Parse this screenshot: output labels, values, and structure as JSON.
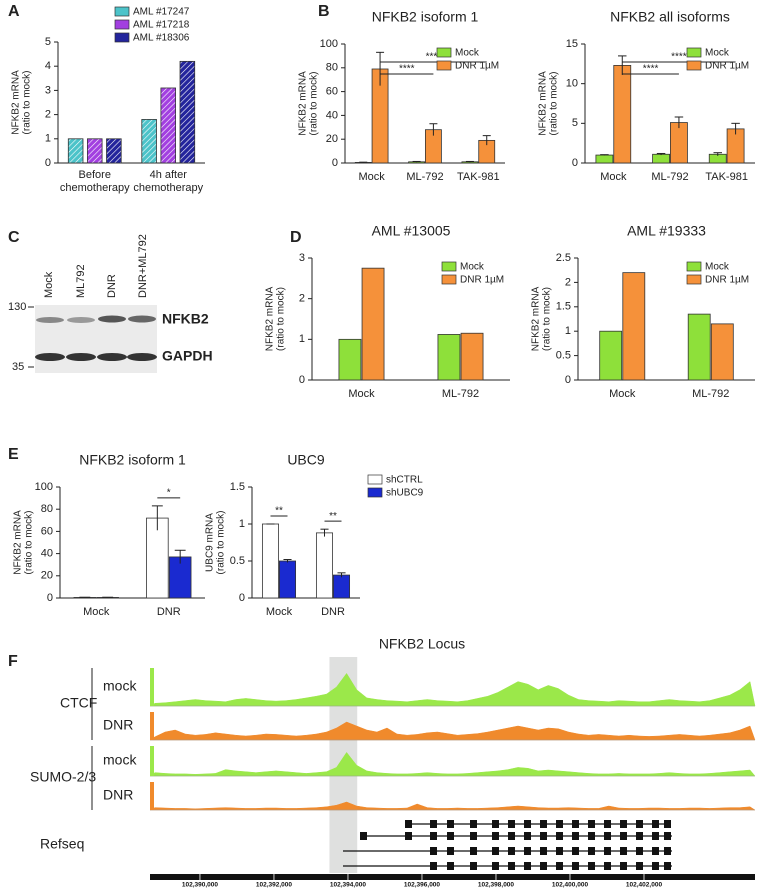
{
  "panel_labels": [
    "A",
    "B",
    "C",
    "D",
    "E",
    "F"
  ],
  "blot": {
    "lanes": [
      "Mock",
      "ML792",
      "DNR",
      "DNR+ML792"
    ],
    "markers": [
      "130",
      "35"
    ],
    "bands": [
      "NFKB2",
      "GAPDH"
    ]
  },
  "chart_data": [
    {
      "type": "bar",
      "ylabel": [
        "NFKB2 mRNA",
        "(ratio to mock)"
      ],
      "categories": [
        "Before chemotherapy",
        "4h after chemotherapy"
      ],
      "series": [
        {
          "name": "AML #17247",
          "color": "#4cc3c9",
          "values": [
            1,
            1.8
          ]
        },
        {
          "name": "AML #17218",
          "color": "#a23fe0",
          "values": [
            1,
            3.1
          ]
        },
        {
          "name": "AML #18306",
          "color": "#23249c",
          "values": [
            1,
            4.2
          ]
        }
      ],
      "ylim": [
        0,
        5
      ],
      "yticks": [
        0,
        1,
        2,
        3,
        4,
        5
      ],
      "hatch": true,
      "legend": "top"
    },
    {
      "type": "bar",
      "title": "NFKB2 isoform 1",
      "ylabel": [
        "NFKB2 mRNA",
        "(ratio to mock)"
      ],
      "categories": [
        "Mock",
        "ML-792",
        "TAK-981"
      ],
      "series": [
        {
          "name": "Mock",
          "color": "#8ee03a",
          "values": [
            0.5,
            1,
            1
          ],
          "errors": [
            0.2,
            0.3,
            0.3
          ]
        },
        {
          "name": "DNR 1µM",
          "color": "#f5913a",
          "values": [
            79,
            28,
            19
          ],
          "errors": [
            14,
            5,
            4
          ]
        }
      ],
      "ylim": [
        0,
        100
      ],
      "yticks": [
        0,
        20,
        40,
        60,
        80,
        100
      ],
      "legend": "top-right",
      "annotations": [
        {
          "text": "****",
          "from": "Mock",
          "to": "TAK-981"
        },
        {
          "text": "****",
          "from": "Mock",
          "to": "ML-792"
        }
      ]
    },
    {
      "type": "bar",
      "title": "NFKB2 all isoforms",
      "ylabel": [
        "NFKB2 mRNA",
        "(ratio to mock)"
      ],
      "categories": [
        "Mock",
        "ML-792",
        "TAK-981"
      ],
      "series": [
        {
          "name": "Mock",
          "color": "#8ee03a",
          "values": [
            1,
            1.1,
            1.1
          ],
          "errors": [
            0.05,
            0.1,
            0.2
          ]
        },
        {
          "name": "DNR 1µM",
          "color": "#f5913a",
          "values": [
            12.3,
            5.1,
            4.3
          ],
          "errors": [
            1.2,
            0.7,
            0.7
          ]
        }
      ],
      "ylim": [
        0,
        15
      ],
      "yticks": [
        0,
        5,
        10,
        15
      ],
      "legend": "top-right",
      "annotations": [
        {
          "text": "****",
          "from": "Mock",
          "to": "TAK-981"
        },
        {
          "text": "****",
          "from": "Mock",
          "to": "ML-792"
        }
      ]
    },
    {
      "type": "bar",
      "title": "AML #13005",
      "ylabel": [
        "NFKB2 mRNA",
        "(ratio to mock)"
      ],
      "categories": [
        "Mock",
        "ML-792"
      ],
      "series": [
        {
          "name": "Mock",
          "color": "#8ee03a",
          "values": [
            1,
            1.12
          ]
        },
        {
          "name": "DNR 1µM",
          "color": "#f5913a",
          "values": [
            2.75,
            1.15
          ]
        }
      ],
      "ylim": [
        0,
        3
      ],
      "yticks": [
        0,
        1,
        2,
        3
      ],
      "legend": "top-right"
    },
    {
      "type": "bar",
      "title": "AML #19333",
      "ylabel": [
        "NFKB2 mRNA",
        "(ratio to mock)"
      ],
      "categories": [
        "Mock",
        "ML-792"
      ],
      "series": [
        {
          "name": "Mock",
          "color": "#8ee03a",
          "values": [
            1,
            1.35
          ]
        },
        {
          "name": "DNR 1µM",
          "color": "#f5913a",
          "values": [
            2.2,
            1.15
          ]
        }
      ],
      "ylim": [
        0,
        2.5
      ],
      "yticks": [
        0,
        0.5,
        1,
        1.5,
        2,
        2.5
      ],
      "legend": "top-right"
    },
    {
      "type": "bar",
      "title": "NFKB2 isoform 1",
      "ylabel": [
        "NFKB2 mRNA",
        "(ratio to mock)"
      ],
      "categories": [
        "Mock",
        "DNR"
      ],
      "series": [
        {
          "color": "#ffffff",
          "values": [
            0.5,
            72
          ],
          "errors": [
            0.2,
            11
          ]
        },
        {
          "color": "#1a2ad0",
          "values": [
            0.5,
            37
          ],
          "errors": [
            0.2,
            6
          ]
        }
      ],
      "ylim": [
        0,
        100
      ],
      "yticks": [
        0,
        20,
        40,
        60,
        80,
        100
      ],
      "annotations": [
        {
          "text": "*",
          "category": "DNR"
        }
      ]
    },
    {
      "type": "bar",
      "title": "UBC9",
      "ylabel": [
        "UBC9 mRNA",
        "(ratio to mock)"
      ],
      "categories": [
        "Mock",
        "DNR"
      ],
      "series": [
        {
          "name": "shCTRL",
          "color": "#ffffff",
          "values": [
            1,
            0.88
          ],
          "errors": [
            0,
            0.05
          ]
        },
        {
          "name": "shUBC9",
          "color": "#1a2ad0",
          "values": [
            0.5,
            0.31
          ],
          "errors": [
            0.02,
            0.03
          ]
        }
      ],
      "ylim": [
        0,
        1.5
      ],
      "yticks": [
        0,
        0.5,
        1,
        1.5
      ],
      "legend": "right",
      "annotations": [
        {
          "text": "**",
          "category": "Mock"
        },
        {
          "text": "**",
          "category": "DNR"
        }
      ]
    },
    {
      "type": "track",
      "title": "NFKB2 Locus",
      "xlim": [
        102388650,
        102405000
      ],
      "xticks": [
        {
          "value": 102390000,
          "label": "102,390,000"
        },
        {
          "value": 102392000,
          "label": "102,392,000"
        },
        {
          "value": 102394000,
          "label": "102,394,000"
        },
        {
          "value": 102396000,
          "label": "102,396,000"
        },
        {
          "value": 102398000,
          "label": "102,398,000"
        },
        {
          "value": 102400000,
          "label": "102,400,000"
        },
        {
          "value": 102402000,
          "label": "102,402,000"
        }
      ],
      "highlight": [
        102393500,
        102394250
      ],
      "ylim": [
        0,
        70
      ],
      "groups": [
        {
          "name": "CTCF",
          "tracks": [
            {
              "name": "mock",
              "color": "#9be84a",
              "values": [
                5,
                6,
                8,
                10,
                12,
                10,
                9,
                8,
                12,
                14,
                12,
                10,
                9,
                10,
                12,
                15,
                18,
                22,
                35,
                60,
                30,
                15,
                12,
                10,
                9,
                8,
                10,
                12,
                10,
                9,
                8,
                10,
                14,
                18,
                25,
                35,
                45,
                40,
                30,
                38,
                32,
                20,
                12,
                10,
                9,
                8,
                10,
                9,
                8,
                8,
                10,
                12,
                10,
                9,
                8,
                10,
                15,
                20,
                30,
                45
              ]
            },
            {
              "name": "DNR",
              "color": "#f08a2c",
              "values": [
                8,
                20,
                25,
                15,
                12,
                14,
                18,
                15,
                12,
                10,
                12,
                15,
                14,
                12,
                10,
                12,
                15,
                20,
                30,
                45,
                35,
                25,
                20,
                30,
                15,
                12,
                14,
                18,
                20,
                16,
                12,
                14,
                16,
                20,
                25,
                30,
                35,
                30,
                25,
                30,
                28,
                20,
                15,
                12,
                14,
                12,
                10,
                12,
                10,
                9,
                10,
                12,
                14,
                12,
                10,
                12,
                15,
                18,
                25,
                35
              ]
            }
          ]
        },
        {
          "name": "SUMO-2/3",
          "tracks": [
            {
              "name": "mock",
              "color": "#9be84a",
              "values": [
                8,
                6,
                5,
                5,
                4,
                5,
                6,
                15,
                12,
                10,
                8,
                10,
                12,
                10,
                8,
                6,
                8,
                10,
                20,
                55,
                25,
                12,
                8,
                6,
                5,
                5,
                6,
                8,
                6,
                5,
                5,
                6,
                8,
                10,
                12,
                15,
                20,
                18,
                12,
                14,
                12,
                10,
                8,
                6,
                5,
                5,
                6,
                5,
                5,
                5,
                6,
                8,
                6,
                5,
                5,
                6,
                8,
                10,
                12,
                14
              ]
            },
            {
              "name": "DNR",
              "color": "#f08a2c",
              "values": [
                6,
                5,
                4,
                4,
                3,
                4,
                5,
                6,
                5,
                4,
                4,
                5,
                5,
                4,
                4,
                5,
                6,
                8,
                12,
                20,
                10,
                6,
                5,
                4,
                4,
                5,
                15,
                6,
                4,
                4,
                5,
                4,
                4,
                5,
                6,
                8,
                10,
                8,
                6,
                5,
                5,
                6,
                5,
                4,
                4,
                10,
                5,
                4,
                4,
                5,
                5,
                4,
                4,
                5,
                5,
                4,
                5,
                6,
                6,
                8
              ]
            }
          ]
        }
      ],
      "refseq": "Refseq"
    }
  ]
}
